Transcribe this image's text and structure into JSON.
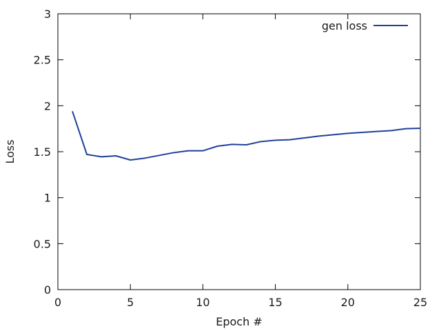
{
  "chart_data": {
    "type": "line",
    "title": "",
    "xlabel": "Epoch #",
    "ylabel": "Loss",
    "xlim": [
      0,
      25
    ],
    "ylim": [
      0,
      3
    ],
    "xticks": [
      0,
      5,
      10,
      15,
      20,
      25
    ],
    "yticks": [
      0,
      0.5,
      1,
      1.5,
      2,
      2.5,
      3
    ],
    "xtick_labels": [
      "0",
      "5",
      "10",
      "15",
      "20",
      "25"
    ],
    "ytick_labels": [
      "0",
      "0.5",
      "1",
      "1.5",
      "2",
      "2.5",
      "3"
    ],
    "grid": false,
    "legend_position": "top-right",
    "series": [
      {
        "name": "gen loss",
        "color": "#1f3f99",
        "x": [
          1,
          2,
          3,
          4,
          5,
          6,
          7,
          8,
          9,
          10,
          11,
          12,
          13,
          14,
          15,
          16,
          17,
          18,
          19,
          20,
          21,
          22,
          23,
          24,
          25
        ],
        "y": [
          1.94,
          1.47,
          1.445,
          1.455,
          1.41,
          1.43,
          1.46,
          1.49,
          1.51,
          1.51,
          1.56,
          1.58,
          1.575,
          1.61,
          1.625,
          1.63,
          1.65,
          1.67,
          1.685,
          1.7,
          1.71,
          1.72,
          1.73,
          1.75,
          1.755
        ]
      }
    ]
  }
}
